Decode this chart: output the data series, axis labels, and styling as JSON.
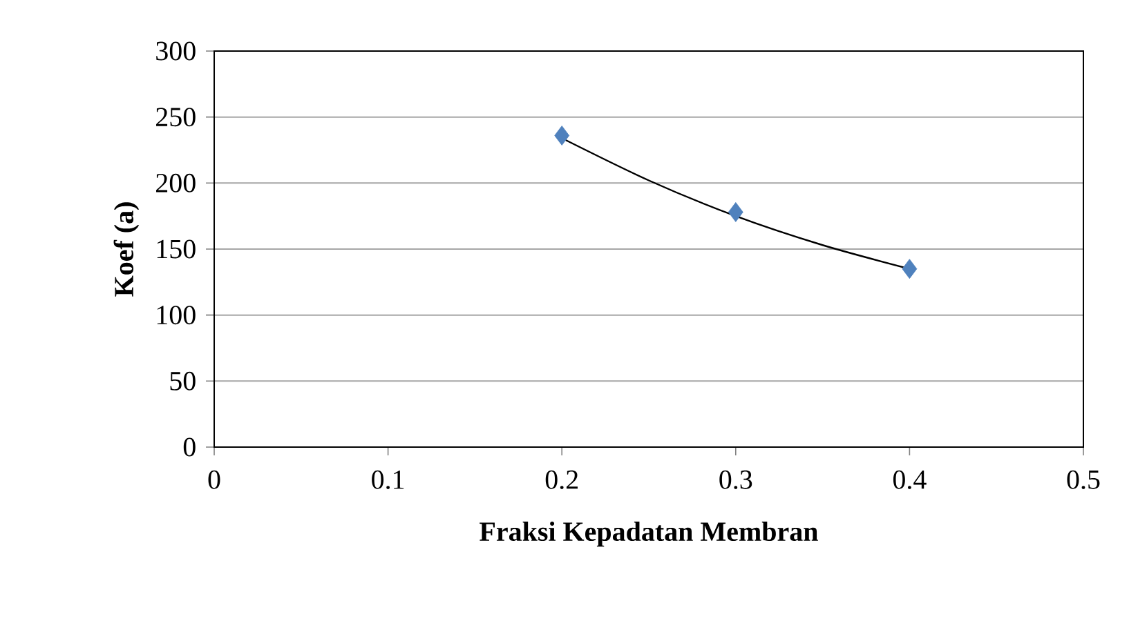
{
  "chart_data": {
    "type": "scatter",
    "xlabel": "Fraksi Kepadatan Membran",
    "ylabel": "Koef (a)",
    "xlim": [
      0,
      0.5
    ],
    "xticks": [
      0,
      0.1,
      0.2,
      0.3,
      0.4,
      0.5
    ],
    "ylim": [
      0,
      300
    ],
    "yticks": [
      0,
      50,
      100,
      150,
      200,
      250,
      300
    ],
    "grid": "y",
    "series": [
      {
        "color": "#4f81bd",
        "marker": "diamond",
        "x": [
          0.2,
          0.3,
          0.4
        ],
        "values": [
          236,
          178,
          135
        ]
      },
      {
        "type": "line",
        "color": "#000000",
        "marker": "none",
        "x": [
          0.2,
          0.25,
          0.3,
          0.35,
          0.4
        ],
        "values": [
          234,
          202,
          175,
          153,
          135
        ]
      }
    ]
  }
}
